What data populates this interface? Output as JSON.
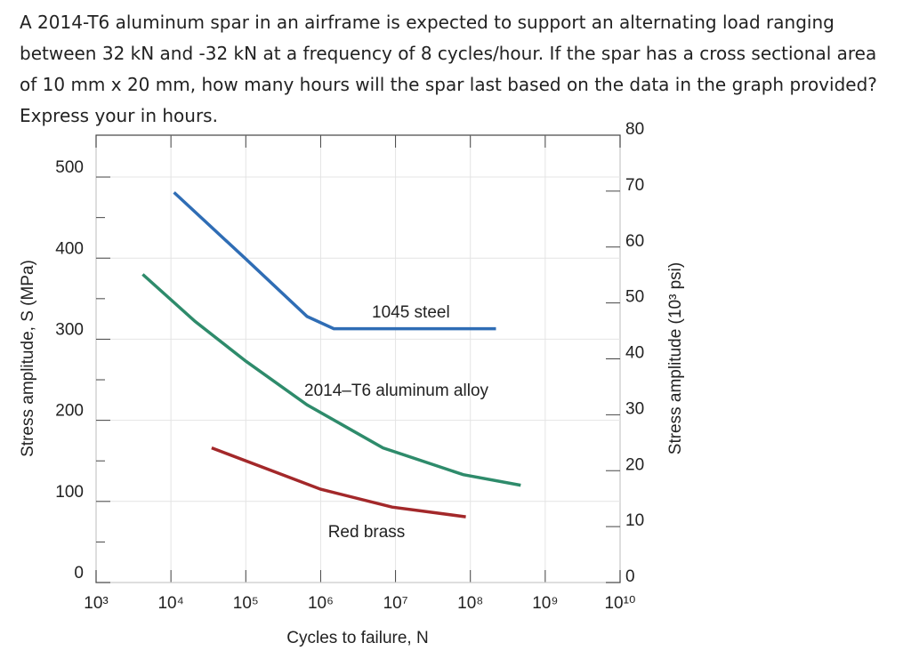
{
  "question": [
    "A 2014-T6 aluminum spar in an airframe is expected to support an alternating load ranging",
    "between 32 kN and -32 kN at a frequency of 8 cycles/hour. If the spar has a cross sectional area",
    "of 10 mm x 20 mm, how many hours will the spar last based on the data in the graph provided?",
    "Express your in hours."
  ],
  "chart_data": {
    "type": "line",
    "x_label": "Cycles to failure, N",
    "y_label": "Stress amplitude, S (MPa)",
    "y2_label": "Stress amplitude (10³ psi)",
    "log_x": true,
    "grid": true,
    "xlim": [
      1000,
      10000000000
    ],
    "ylim": [
      0,
      551.6
    ],
    "y2lim": [
      0,
      80
    ],
    "xticks": [
      {
        "value": 1000,
        "label": "10³"
      },
      {
        "value": 10000,
        "label": "10⁴"
      },
      {
        "value": 100000,
        "label": "10⁵"
      },
      {
        "value": 1000000,
        "label": "10⁶"
      },
      {
        "value": 10000000,
        "label": "10⁷"
      },
      {
        "value": 100000000,
        "label": "10⁸"
      },
      {
        "value": 1000000000,
        "label": "10⁹"
      },
      {
        "value": 10000000000,
        "label": "10¹⁰"
      }
    ],
    "yticks": [
      0,
      100,
      200,
      300,
      400,
      500
    ],
    "yminorticks": [
      50,
      150,
      250,
      350,
      450
    ],
    "y2ticks": [
      0,
      10,
      20,
      30,
      40,
      50,
      60,
      70,
      80
    ],
    "series": [
      {
        "name": "1045 steel",
        "color": "#2f6db5",
        "x": [
          11000,
          100000,
          660000,
          1500000,
          220000000
        ],
        "y": [
          481,
          399,
          328,
          313,
          313
        ]
      },
      {
        "name": "2014–T6 aluminum alloy",
        "color": "#2e8b6b",
        "x": [
          4200,
          21000,
          100000,
          660000,
          6800000,
          80000000,
          470000000
        ],
        "y": [
          380,
          322,
          273,
          219,
          166,
          133,
          120
        ]
      },
      {
        "name": "Red brass",
        "color": "#a3282a",
        "x": [
          35000,
          1000000,
          9000000,
          87000000
        ],
        "y": [
          166,
          115,
          93,
          81
        ]
      }
    ]
  }
}
